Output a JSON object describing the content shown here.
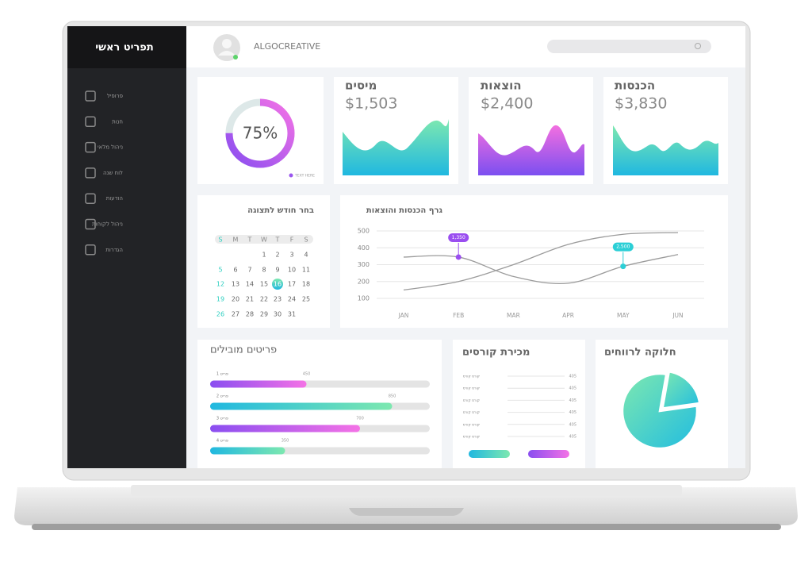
{
  "sidebar": {
    "title": "תפריט ראשי",
    "menu": [
      "פרופיל",
      "חנות",
      "ניהול מלאי",
      "לוח שנה",
      "הודעות",
      "ניהול לקוחות",
      "הגדרות"
    ]
  },
  "header": {
    "brand": "ALGOCREATIVE"
  },
  "progress": {
    "value": 75,
    "label": "75%",
    "legend": "TEXT HERE"
  },
  "stats": [
    {
      "title": "מיסים",
      "amount": "$1,503"
    },
    {
      "title": "הוצאות",
      "amount": "$2,400"
    },
    {
      "title": "הכנסות",
      "amount": "$3,830"
    }
  ],
  "calendar": {
    "title": "בחר חודש לתצוגה",
    "weekdays": [
      "S",
      "M",
      "T",
      "W",
      "T",
      "F",
      "S"
    ],
    "weeks": [
      [
        null,
        null,
        null,
        1,
        2,
        3,
        4
      ],
      [
        5,
        6,
        7,
        8,
        9,
        10,
        11
      ],
      [
        12,
        13,
        14,
        15,
        16,
        17,
        18
      ],
      [
        19,
        20,
        21,
        22,
        23,
        24,
        25
      ],
      [
        26,
        27,
        28,
        29,
        30,
        31,
        null
      ]
    ],
    "selected": 16
  },
  "line_chart": {
    "type": "line",
    "title": "גרף הכנסות והוצאות",
    "categories": [
      "JAN",
      "FEB",
      "MAR",
      "APR",
      "MAY",
      "JUN"
    ],
    "series": [
      {
        "color": "#9b9b9b",
        "values": [
          150,
          200,
          300,
          420,
          480,
          490
        ]
      },
      {
        "color": "#9b9b9b",
        "values": [
          345,
          345,
          230,
          190,
          290,
          360
        ]
      }
    ],
    "ylim": [
      100,
      500
    ],
    "yticks": [
      100,
      200,
      300,
      400,
      500
    ],
    "grid": true,
    "annotations": [
      "1,350",
      "2,500"
    ]
  },
  "top_items": {
    "title": "פריטים מובילים",
    "items": [
      {
        "name": "פריט 1",
        "value": 450
      },
      {
        "name": "פריט 2",
        "value": 850
      },
      {
        "name": "פריט 3",
        "value": 700
      },
      {
        "name": "פריט 4",
        "value": 350
      }
    ]
  },
  "courses": {
    "title": "מכירת קורסים",
    "rows": [
      {
        "name": "קורס קורס",
        "value": 405
      },
      {
        "name": "קורס קורס",
        "value": 405
      },
      {
        "name": "קורס קורס",
        "value": 405
      },
      {
        "name": "קורס קורס",
        "value": 405
      },
      {
        "name": "קורס קורס",
        "value": 405
      },
      {
        "name": "קורס קורס",
        "value": 405
      }
    ]
  },
  "pie": {
    "type": "pie",
    "title": "חלוקה לרווחים",
    "values": [
      80,
      20
    ]
  }
}
